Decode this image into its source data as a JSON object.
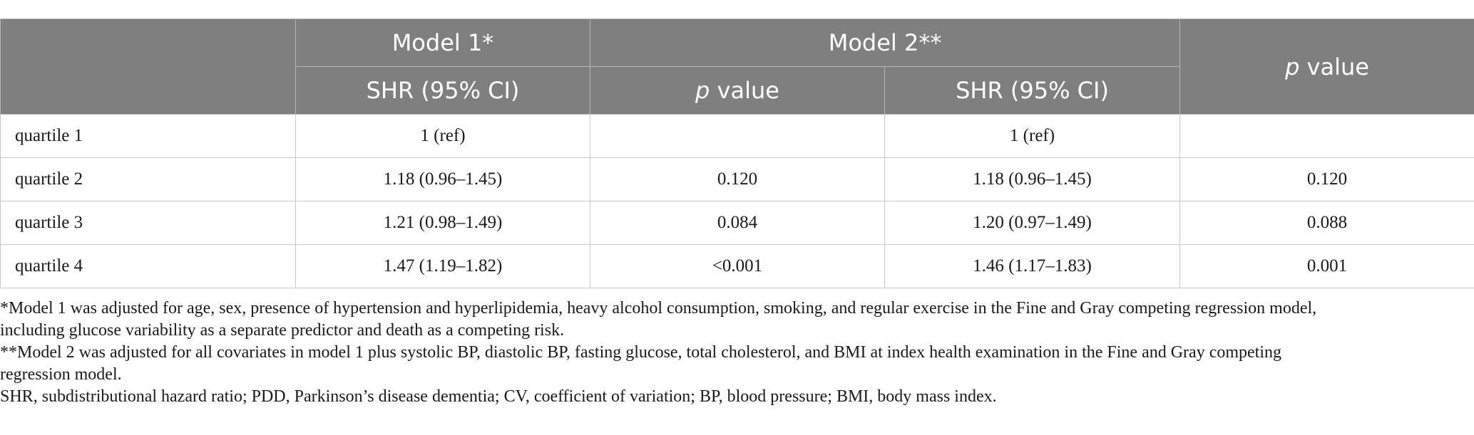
{
  "table": {
    "header_row1": {
      "model1": "Model 1*",
      "model2": "Model 2**",
      "pvalue_italic": "p",
      "pvalue_rest": " value"
    },
    "header_row2": {
      "shr1": "SHR (95% CI)",
      "pvalue_italic": "p",
      "pvalue_rest": " value",
      "shr2": "SHR (95% CI)"
    },
    "rows": [
      {
        "label": "quartile 1",
        "c1": "1 (ref)",
        "c2": "",
        "c3": "1 (ref)",
        "c4": ""
      },
      {
        "label": "quartile 2",
        "c1": "1.18 (0.96–1.45)",
        "c2": "0.120",
        "c3": "1.18 (0.96–1.45)",
        "c4": "0.120"
      },
      {
        "label": "quartile 3",
        "c1": "1.21 (0.98–1.49)",
        "c2": "0.084",
        "c3": "1.20 (0.97–1.49)",
        "c4": "0.088"
      },
      {
        "label": "quartile 4",
        "c1": "1.47 (1.19–1.82)",
        "c2": "<0.001",
        "c3": "1.46 (1.17–1.83)",
        "c4": "0.001"
      }
    ]
  },
  "footnotes": {
    "note1_line1": "*Model 1 was adjusted for age, sex, presence of hypertension and hyperlipidemia, heavy alcohol consumption, smoking, and regular exercise in the Fine and Gray competing regression model,",
    "note1_line2": "including glucose variability as a separate predictor and death as a competing risk.",
    "note2_line1": "**Model 2 was adjusted for all covariates in model 1 plus systolic BP, diastolic BP, fasting glucose, total cholesterol, and BMI at index health examination in the Fine and Gray competing",
    "note2_line2": "regression model.",
    "abbrev": "SHR, subdistributional hazard ratio; PDD, Parkinson’s disease dementia; CV, coefficient of variation; BP, blood pressure; BMI, body mass index."
  }
}
